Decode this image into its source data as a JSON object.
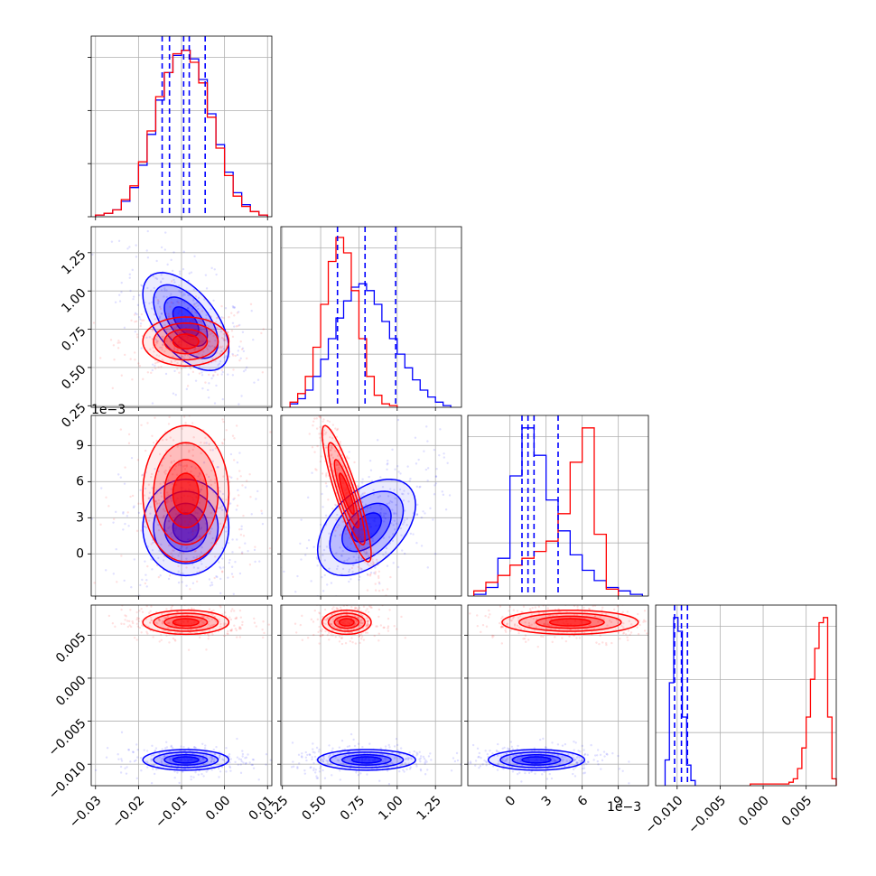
{
  "chart_data": {
    "type": "corner",
    "grid": true,
    "colors": {
      "series_a": "#0000ff",
      "series_b": "#ff0000",
      "quantile_lines": "#0000ff"
    },
    "offset_texts": {
      "p3_axis": "1e−3"
    },
    "params": [
      {
        "range": [
          -0.031,
          0.011
        ],
        "ticks": [
          -0.03,
          -0.02,
          -0.01,
          0.0,
          0.01
        ],
        "tick_labels": [
          "−0.03",
          "−0.02",
          "−0.01",
          "0.00",
          "0.01"
        ]
      },
      {
        "range": [
          0.24,
          1.42
        ],
        "ticks": [
          0.25,
          0.5,
          0.75,
          1.0,
          1.25
        ],
        "tick_labels": [
          "0.25",
          "0.50",
          "0.75",
          "1.00",
          "1.25"
        ]
      },
      {
        "range": [
          -3.5,
          11.5
        ],
        "ticks": [
          0,
          3,
          6,
          9
        ],
        "tick_labels": [
          "0",
          "3",
          "6",
          "9"
        ]
      },
      {
        "range": [
          -0.0125,
          0.0085
        ],
        "ticks": [
          -0.01,
          -0.005,
          0.0,
          0.005
        ],
        "tick_labels": [
          "−0.010",
          "−0.005",
          "0.000",
          "0.005"
        ]
      }
    ],
    "series": [
      {
        "key": "series_a",
        "color": "#0000ff",
        "means": [
          -0.009,
          0.8,
          2.2,
          -0.0095
        ],
        "cov": [
          [
            2.5e-05,
            -0.00045,
            0.0,
            0.0
          ],
          [
            -0.00045,
            0.0256,
            0.15,
            0.0
          ],
          [
            0.0,
            0.15,
            4.0,
            0.0
          ],
          [
            0.0,
            0.0,
            0.0,
            3.6e-07
          ]
        ],
        "histograms": [
          {
            "edges": [
              -0.03,
              -0.028,
              -0.026,
              -0.024,
              -0.022,
              -0.02,
              -0.018,
              -0.016,
              -0.014,
              -0.012,
              -0.01,
              -0.008,
              -0.006,
              -0.004,
              -0.002,
              0.0,
              0.002,
              0.004,
              0.006,
              0.008,
              0.01
            ],
            "counts": [
              1,
              2,
              4,
              9,
              17,
              30,
              48,
              68,
              84,
              94,
              97,
              92,
              80,
              60,
              42,
              26,
              14,
              7,
              3,
              1
            ]
          },
          {
            "edges": [
              0.3,
              0.35,
              0.4,
              0.45,
              0.5,
              0.55,
              0.6,
              0.65,
              0.7,
              0.75,
              0.8,
              0.85,
              0.9,
              0.95,
              1.0,
              1.05,
              1.1,
              1.15,
              1.2,
              1.25,
              1.3,
              1.35
            ],
            "counts": [
              2,
              5,
              10,
              18,
              28,
              40,
              52,
              62,
              70,
              72,
              68,
              60,
              50,
              40,
              31,
              23,
              16,
              10,
              6,
              3,
              1
            ]
          },
          {
            "edges": [
              -3,
              -2,
              -1,
              0,
              1,
              2,
              3,
              4,
              5,
              6,
              7,
              8,
              9,
              10,
              11
            ],
            "counts": [
              1,
              5,
              22,
              70,
              98,
              82,
              56,
              38,
              24,
              15,
              9,
              5,
              3,
              1
            ]
          },
          {
            "edges": [
              -0.0114,
              -0.0109,
              -0.0104,
              -0.0099,
              -0.0094,
              -0.0089,
              -0.0084,
              -0.0079
            ],
            "counts": [
              15,
              60,
              98,
              90,
              40,
              12,
              3
            ]
          }
        ]
      },
      {
        "key": "series_b",
        "color": "#ff0000",
        "means": [
          -0.009,
          0.67,
          5.0,
          0.0065
        ],
        "cov": [
          [
            2.5e-05,
            0.0,
            0.0,
            0.0
          ],
          [
            0.0,
            0.0064,
            -0.2,
            0.0
          ],
          [
            0.0,
            -0.2,
            8.0,
            0.0
          ],
          [
            0.0,
            0.0,
            0.0,
            4.89e-07
          ]
        ],
        "histograms": [
          {
            "edges": [
              -0.03,
              -0.028,
              -0.026,
              -0.024,
              -0.022,
              -0.02,
              -0.018,
              -0.016,
              -0.014,
              -0.012,
              -0.01,
              -0.008,
              -0.006,
              -0.004,
              -0.002,
              0.0,
              0.002,
              0.004,
              0.006,
              0.008,
              0.01
            ],
            "counts": [
              1,
              2,
              4,
              10,
              18,
              32,
              50,
              70,
              84,
              95,
              97,
              90,
              78,
              58,
              40,
              24,
              12,
              6,
              3,
              1
            ]
          },
          {
            "edges": [
              0.3,
              0.35,
              0.4,
              0.45,
              0.5,
              0.55,
              0.6,
              0.65,
              0.7,
              0.75,
              0.8,
              0.85,
              0.9,
              0.95,
              1.0
            ],
            "counts": [
              3,
              8,
              18,
              35,
              60,
              85,
              99,
              90,
              68,
              40,
              18,
              7,
              2,
              1
            ]
          },
          {
            "edges": [
              -3,
              -2,
              -1,
              0,
              1,
              2,
              3,
              4,
              5,
              6,
              7,
              8,
              9
            ],
            "counts": [
              3,
              8,
              12,
              18,
              22,
              26,
              32,
              48,
              78,
              98,
              36,
              4
            ]
          },
          {
            "edges": [
              -0.0015,
              -0.001,
              -0.0005,
              0.0,
              0.0005,
              0.001,
              0.0015,
              0.002,
              0.0025,
              0.003,
              0.0035,
              0.004,
              0.0045,
              0.005,
              0.0055,
              0.006,
              0.0065,
              0.007,
              0.0075,
              0.008,
              0.0085
            ],
            "counts": [
              1,
              1,
              1,
              1,
              1,
              1,
              1,
              1,
              1,
              2,
              4,
              10,
              22,
              40,
              62,
              80,
              95,
              98,
              40,
              4
            ]
          }
        ]
      }
    ],
    "quantiles": [
      [
        -0.0145,
        -0.0095,
        -0.0045
      ],
      [
        0.61,
        0.79,
        0.99
      ],
      [
        1.0,
        2.0,
        4.0
      ],
      [
        -0.0103,
        -0.0095,
        -0.0088
      ]
    ],
    "quantiles_extra": [
      [
        -0.0128,
        -0.0082
      ],
      [],
      [
        1.5
      ],
      []
    ],
    "hist_ymax": [
      100,
      100,
      100,
      100
    ]
  }
}
